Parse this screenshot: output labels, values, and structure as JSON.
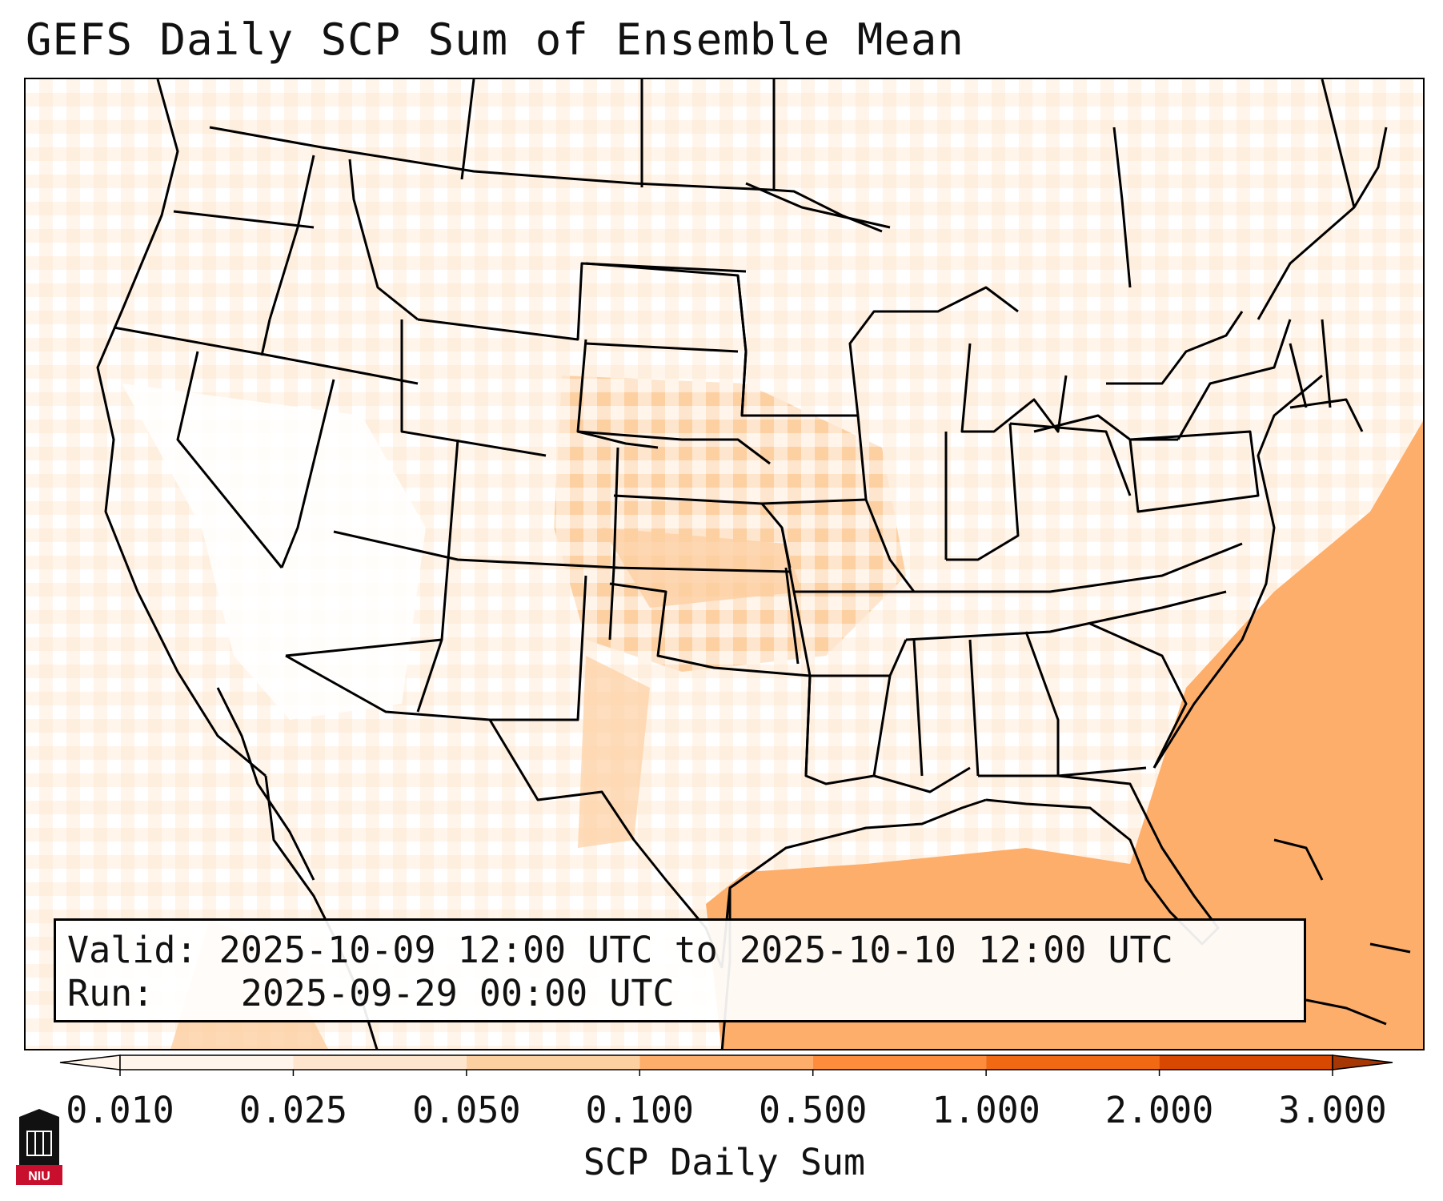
{
  "title": "GEFS Daily SCP Sum of Ensemble Mean",
  "info": {
    "valid_label": "Valid:",
    "valid_value": "2025-10-09 12:00 UTC to 2025-10-10 12:00 UTC",
    "run_label": "Run:",
    "run_value": "2025-09-29 00:00 UTC"
  },
  "colorbar": {
    "label": "SCP Daily Sum",
    "ticks": [
      "0.010",
      "0.025",
      "0.050",
      "0.100",
      "0.500",
      "1.000",
      "2.000",
      "3.000"
    ],
    "colors": [
      "#fff5eb",
      "#fee6ce",
      "#fdd0a2",
      "#fdae6b",
      "#fd8d3c",
      "#f16913",
      "#d94801",
      "#a63603"
    ]
  },
  "logo": {
    "text": "NIU"
  },
  "shading_regions": [
    {
      "name": "atlantic-gulf",
      "level": "0.100"
    },
    {
      "name": "central-plains",
      "level": "0.050"
    },
    {
      "name": "west-scatter",
      "level": "0.010"
    }
  ]
}
